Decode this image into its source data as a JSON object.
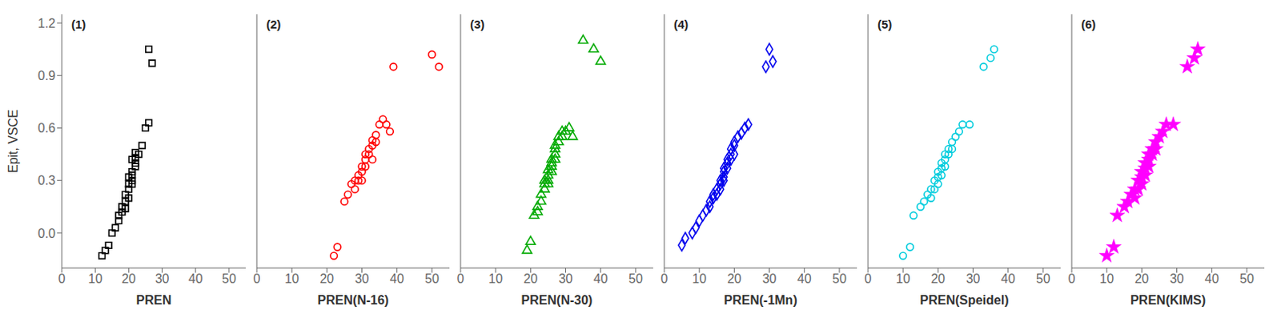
{
  "chart_data": [
    {
      "type": "scatter",
      "annotations": [
        "(1)"
      ],
      "xlabel": "PREN",
      "ylabel": "Epit, VSCE",
      "color": "#000000",
      "marker": "square",
      "x": [
        12,
        13,
        14,
        15,
        16,
        17,
        17,
        18,
        18,
        19,
        19,
        19,
        20,
        20,
        20,
        20,
        21,
        21,
        21,
        21,
        21,
        22,
        22,
        22,
        22,
        23,
        24,
        25,
        26,
        26,
        27
      ],
      "values": [
        -0.13,
        -0.1,
        -0.07,
        0.0,
        0.03,
        0.07,
        0.1,
        0.12,
        0.15,
        0.14,
        0.18,
        0.22,
        0.2,
        0.25,
        0.28,
        0.32,
        0.28,
        0.3,
        0.33,
        0.35,
        0.42,
        0.38,
        0.4,
        0.43,
        0.46,
        0.45,
        0.5,
        0.6,
        0.63,
        1.05,
        0.97
      ],
      "xlim": [
        0,
        55
      ],
      "xticks": [
        0,
        10,
        20,
        30,
        40,
        50
      ],
      "ylim": [
        -0.2,
        1.25
      ],
      "yticks": [
        {
          "value": 0.0,
          "label": "0.0"
        },
        0.3,
        0.6,
        0.9,
        1.2
      ]
    },
    {
      "type": "scatter",
      "annotations": [
        "(2)"
      ],
      "xlabel": "PREN(N-16)",
      "color": "#ff0000",
      "marker": "circle",
      "x": [
        22,
        23,
        25,
        26,
        27,
        28,
        28,
        29,
        29,
        30,
        30,
        30,
        31,
        31,
        31,
        32,
        32,
        33,
        33,
        33,
        34,
        34,
        35,
        36,
        37,
        38,
        39,
        50,
        52
      ],
      "values": [
        -0.13,
        -0.08,
        0.18,
        0.22,
        0.28,
        0.25,
        0.3,
        0.3,
        0.33,
        0.3,
        0.35,
        0.38,
        0.38,
        0.42,
        0.45,
        0.45,
        0.48,
        0.42,
        0.5,
        0.53,
        0.52,
        0.56,
        0.62,
        0.65,
        0.62,
        0.58,
        0.95,
        1.02,
        0.95
      ],
      "xlim": [
        0,
        55
      ],
      "xticks": [
        0,
        10,
        20,
        30,
        40,
        50
      ],
      "ylim": [
        -0.2,
        1.25
      ],
      "yticks": [
        0.0,
        0.3,
        0.6,
        0.9,
        1.2
      ],
      "tick_labels": "x"
    },
    {
      "type": "scatter",
      "annotations": [
        "(3)"
      ],
      "xlabel": "PREN(N-30)",
      "color": "#00aa00",
      "marker": "triangle",
      "x": [
        19,
        20,
        21,
        22,
        22,
        23,
        23,
        24,
        24,
        24,
        25,
        25,
        25,
        25,
        26,
        26,
        26,
        26,
        27,
        27,
        27,
        27,
        28,
        28,
        29,
        29,
        30,
        31,
        32,
        35,
        38,
        40
      ],
      "values": [
        -0.1,
        -0.05,
        0.1,
        0.12,
        0.15,
        0.18,
        0.22,
        0.25,
        0.28,
        0.3,
        0.28,
        0.3,
        0.33,
        0.36,
        0.35,
        0.38,
        0.4,
        0.42,
        0.42,
        0.45,
        0.48,
        0.5,
        0.52,
        0.55,
        0.55,
        0.58,
        0.58,
        0.6,
        0.55,
        1.1,
        1.05,
        0.98
      ],
      "xlim": [
        0,
        55
      ],
      "xticks": [
        0,
        10,
        20,
        30,
        40,
        50
      ],
      "ylim": [
        -0.2,
        1.25
      ],
      "yticks": [
        0.0,
        0.3,
        0.6,
        0.9,
        1.2
      ],
      "tick_labels": "x"
    },
    {
      "type": "scatter",
      "annotations": [
        "(4)"
      ],
      "xlabel": "PREN(-1Mn)",
      "color": "#0000ee",
      "marker": "diamond",
      "x": [
        5,
        6,
        8,
        9,
        10,
        11,
        12,
        13,
        13,
        14,
        14,
        15,
        15,
        16,
        16,
        16,
        17,
        17,
        17,
        17,
        18,
        18,
        18,
        19,
        19,
        19,
        20,
        20,
        20,
        21,
        22,
        23,
        24,
        29,
        30,
        31
      ],
      "values": [
        -0.07,
        -0.03,
        0.0,
        0.03,
        0.07,
        0.1,
        0.13,
        0.15,
        0.18,
        0.2,
        0.22,
        0.22,
        0.25,
        0.25,
        0.28,
        0.3,
        0.3,
        0.32,
        0.35,
        0.37,
        0.37,
        0.4,
        0.42,
        0.42,
        0.45,
        0.48,
        0.45,
        0.5,
        0.52,
        0.55,
        0.57,
        0.6,
        0.62,
        0.95,
        1.05,
        0.98
      ],
      "xlim": [
        0,
        55
      ],
      "xticks": [
        0,
        10,
        20,
        30,
        40,
        50
      ],
      "ylim": [
        -0.2,
        1.25
      ],
      "yticks": [
        0.0,
        0.3,
        0.6,
        0.9,
        1.2
      ],
      "tick_labels": "x"
    },
    {
      "type": "scatter",
      "annotations": [
        "(5)"
      ],
      "xlabel": "PREN(Speidel)",
      "color": "#00ccdd",
      "marker": "circle",
      "x": [
        10,
        12,
        13,
        15,
        16,
        17,
        18,
        18,
        19,
        19,
        20,
        20,
        20,
        21,
        21,
        21,
        22,
        22,
        22,
        23,
        23,
        24,
        24,
        25,
        26,
        27,
        29,
        33,
        35,
        36
      ],
      "values": [
        -0.13,
        -0.08,
        0.1,
        0.15,
        0.18,
        0.22,
        0.2,
        0.25,
        0.25,
        0.3,
        0.28,
        0.32,
        0.35,
        0.33,
        0.37,
        0.4,
        0.38,
        0.42,
        0.45,
        0.45,
        0.48,
        0.48,
        0.52,
        0.55,
        0.58,
        0.62,
        0.62,
        0.95,
        1.0,
        1.05
      ],
      "xlim": [
        0,
        55
      ],
      "xticks": [
        0,
        10,
        20,
        30,
        40,
        50
      ],
      "ylim": [
        -0.2,
        1.25
      ],
      "yticks": [
        0.0,
        0.3,
        0.6,
        0.9,
        1.2
      ],
      "tick_labels": "x"
    },
    {
      "type": "scatter",
      "annotations": [
        "(6)"
      ],
      "xlabel": "PREN(KIMS)",
      "color": "#ff00ff",
      "marker": "star",
      "x": [
        10,
        12,
        13,
        15,
        16,
        17,
        18,
        18,
        19,
        19,
        20,
        20,
        20,
        21,
        21,
        21,
        22,
        22,
        22,
        23,
        23,
        24,
        24,
        25,
        26,
        27,
        29,
        33,
        35,
        36
      ],
      "values": [
        -0.13,
        -0.08,
        0.1,
        0.15,
        0.18,
        0.22,
        0.2,
        0.25,
        0.25,
        0.3,
        0.28,
        0.32,
        0.35,
        0.33,
        0.37,
        0.4,
        0.38,
        0.42,
        0.45,
        0.45,
        0.48,
        0.48,
        0.52,
        0.55,
        0.58,
        0.62,
        0.62,
        0.95,
        1.0,
        1.05
      ],
      "xlim": [
        0,
        55
      ],
      "xticks": [
        0,
        10,
        20,
        30,
        40,
        50
      ],
      "ylim": [
        -0.2,
        1.25
      ],
      "yticks": [
        0.0,
        0.3,
        0.6,
        0.9,
        1.2
      ],
      "tick_labels": "x"
    }
  ]
}
